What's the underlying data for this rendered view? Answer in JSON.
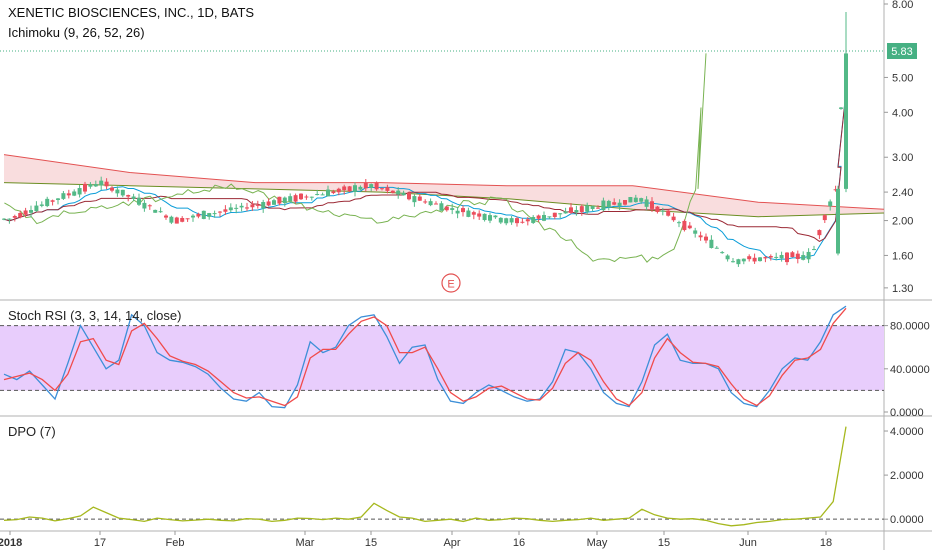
{
  "header": {
    "title": "XENETIC BIOSCIENCES, INC., 1D, BATS",
    "indicator": "Ichimoku (9, 26, 52, 26)"
  },
  "earnings_marker": "E",
  "colors": {
    "up": "#53b987",
    "down": "#eb4d5c",
    "cloud_fill": "#f5c6c8",
    "cloud_line_a": "#6b8e23",
    "cloud_line_b": "#e35252",
    "lagging": "#79b352",
    "conversion": "#0a9dd8",
    "base": "#9c2a36",
    "stoch_k": "#3d8fd8",
    "stoch_d": "#f04b4b",
    "stoch_band": "#e8cdfc",
    "dpo": "#a6b81e",
    "price_label_bg": "#46b083",
    "grid_dashed": "#555555",
    "earnings": "#e35252"
  },
  "chart_data": [
    {
      "type": "candlestick",
      "title": "XENETIC BIOSCIENCES, INC., 1D, BATS",
      "scale": "log",
      "ylim": [
        1.25,
        8.0
      ],
      "y_ticks": [
        "8.00",
        "5.00",
        "4.00",
        "3.00",
        "2.40",
        "2.00",
        "1.60",
        "1.30"
      ],
      "last_price": "5.83",
      "x_ticks": [
        "2018",
        "17",
        "Feb",
        "Mar",
        "15",
        "Apr",
        "16",
        "May",
        "15",
        "Jun",
        "18"
      ],
      "key_points": [
        {
          "date": "2018-01-02",
          "close": 2.02
        },
        {
          "date": "2018-01-17",
          "close": 2.55
        },
        {
          "date": "2018-02-01",
          "close": 2.0
        },
        {
          "date": "2018-03-15",
          "close": 2.5
        },
        {
          "date": "2018-04-02",
          "close": 2.15
        },
        {
          "date": "2018-04-16",
          "close": 1.98
        },
        {
          "date": "2018-05-10",
          "close": 2.3
        },
        {
          "date": "2018-05-29",
          "close": 1.55
        },
        {
          "date": "2018-06-15",
          "close": 1.6
        },
        {
          "date": "2018-06-19",
          "close": 2.45
        },
        {
          "date": "2018-06-20",
          "close": 5.83
        }
      ],
      "ichimoku": {
        "params": "9, 26, 52, 26",
        "cloud_top_key_levels": [
          3.05,
          2.72,
          2.55,
          2.55,
          2.5,
          2.5,
          2.25,
          2.15
        ],
        "cloud_bottom_key_levels": [
          2.55,
          2.5,
          2.45,
          2.4,
          2.3,
          2.15,
          2.05,
          2.1
        ],
        "lagging_span_peak": 5.83
      }
    },
    {
      "type": "line",
      "title": "Stoch RSI (3, 3, 14, 14, close)",
      "ylim": [
        0,
        100
      ],
      "y_ticks": [
        "80.0000",
        "40.0000",
        "0.0000"
      ],
      "bands": [
        20,
        80
      ],
      "series": [
        {
          "name": "K",
          "values": [
            35,
            30,
            38,
            25,
            12,
            45,
            80,
            60,
            40,
            48,
            90,
            80,
            55,
            48,
            46,
            42,
            35,
            22,
            12,
            10,
            18,
            5,
            4,
            25,
            65,
            55,
            60,
            80,
            88,
            90,
            70,
            45,
            60,
            62,
            30,
            10,
            8,
            18,
            25,
            20,
            14,
            10,
            12,
            28,
            58,
            55,
            40,
            18,
            8,
            5,
            28,
            62,
            72,
            48,
            45,
            45,
            40,
            18,
            8,
            5,
            20,
            40,
            50,
            48,
            65,
            90,
            98
          ]
        },
        {
          "name": "D",
          "values": [
            30,
            33,
            36,
            30,
            20,
            35,
            65,
            68,
            48,
            44,
            75,
            82,
            68,
            52,
            47,
            44,
            38,
            28,
            18,
            13,
            14,
            10,
            6,
            14,
            50,
            58,
            58,
            72,
            84,
            88,
            80,
            55,
            55,
            60,
            40,
            18,
            10,
            14,
            22,
            24,
            18,
            12,
            11,
            22,
            45,
            55,
            48,
            28,
            12,
            6,
            18,
            50,
            68,
            55,
            46,
            45,
            42,
            26,
            12,
            6,
            15,
            34,
            48,
            50,
            58,
            82,
            96
          ]
        }
      ]
    },
    {
      "type": "line",
      "title": "DPO (7)",
      "ylim": [
        -0.4,
        4.5
      ],
      "y_ticks": [
        "4.0000",
        "2.0000",
        "0.0000"
      ],
      "series": [
        {
          "name": "DPO",
          "values": [
            -0.05,
            -0.02,
            0.1,
            0.05,
            -0.08,
            0.02,
            0.15,
            0.55,
            0.3,
            0.05,
            -0.02,
            -0.1,
            0.05,
            -0.02,
            -0.08,
            -0.04,
            0.0,
            -0.05,
            -0.08,
            0.02,
            0.0,
            -0.1,
            -0.05,
            0.05,
            0.03,
            -0.02,
            0.05,
            0.0,
            0.1,
            0.72,
            0.4,
            0.1,
            0.05,
            -0.1,
            -0.05,
            0.0,
            -0.1,
            0.05,
            -0.05,
            -0.02,
            0.05,
            0.02,
            -0.05,
            -0.1,
            -0.05,
            -0.02,
            0.05,
            -0.05,
            0.0,
            0.05,
            0.45,
            0.2,
            0.05,
            0.0,
            0.02,
            -0.05,
            -0.2,
            -0.3,
            -0.25,
            -0.15,
            -0.1,
            -0.02,
            0.0,
            0.05,
            0.1,
            0.8,
            4.2
          ]
        }
      ]
    }
  ]
}
